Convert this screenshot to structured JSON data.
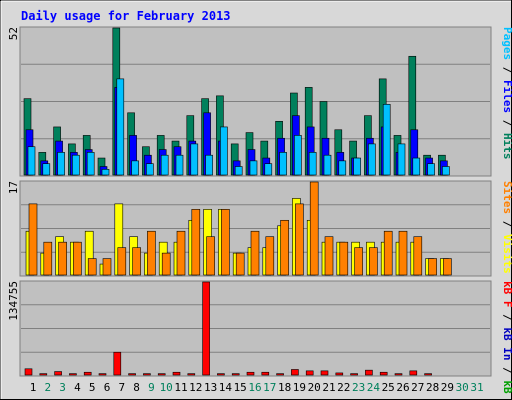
{
  "title": "Daily usage for February 2013",
  "colors": {
    "hits": "#00805c",
    "files": "#0000ff",
    "pages": "#00c0ff",
    "visits": "#ffff00",
    "sites": "#ff8000",
    "kbin": "#0000c0",
    "kbout": "#00a000",
    "kbf": "#ff0000",
    "title": "#0000ff",
    "plot_bg": "#c0c0c0",
    "frame_bg": "#d8d8d8"
  },
  "right_labels": {
    "top": [
      {
        "text": "Pages",
        "color": "#00c0ff"
      },
      {
        "text": " / ",
        "color": "#000000"
      },
      {
        "text": "Files",
        "color": "#0000ff"
      },
      {
        "text": " / ",
        "color": "#000000"
      },
      {
        "text": "Hits",
        "color": "#00805c"
      }
    ],
    "middle": [
      {
        "text": "Sites",
        "color": "#ff8000"
      },
      {
        "text": " / ",
        "color": "#000000"
      },
      {
        "text": "Visits",
        "color": "#ffff00"
      }
    ],
    "bottom": [
      {
        "text": "kB F",
        "color": "#ff0000"
      },
      {
        "text": " / ",
        "color": "#000000"
      },
      {
        "text": "kB In",
        "color": "#0000c0"
      },
      {
        "text": " / ",
        "color": "#000000"
      },
      {
        "text": "kB Out",
        "color": "#00a000"
      }
    ]
  },
  "chart_data": [
    {
      "type": "bar",
      "panel": "hits-files-pages",
      "ymax_label": "52",
      "ylim": [
        0,
        52
      ],
      "categories": [
        "1",
        "2",
        "3",
        "4",
        "5",
        "6",
        "7",
        "8",
        "9",
        "10",
        "11",
        "12",
        "13",
        "14",
        "15",
        "16",
        "17",
        "18",
        "19",
        "20",
        "21",
        "22",
        "23",
        "24",
        "25",
        "26",
        "27",
        "28",
        "29",
        "30",
        "31"
      ],
      "series": [
        {
          "name": "Hits",
          "values": [
            27,
            8,
            17,
            11,
            14,
            6,
            52,
            22,
            10,
            14,
            12,
            21,
            27,
            28,
            11,
            15,
            12,
            19,
            29,
            31,
            26,
            16,
            12,
            21,
            34,
            14,
            42,
            7,
            7,
            0,
            0
          ]
        },
        {
          "name": "Files",
          "values": [
            16,
            5,
            12,
            8,
            9,
            3,
            31,
            14,
            7,
            9,
            10,
            12,
            22,
            12,
            5,
            9,
            6,
            13,
            21,
            17,
            13,
            8,
            6,
            13,
            17,
            8,
            16,
            6,
            5,
            0,
            0
          ]
        },
        {
          "name": "Pages",
          "values": [
            10,
            4,
            8,
            7,
            8,
            2,
            34,
            5,
            4,
            7,
            7,
            11,
            7,
            17,
            3,
            5,
            4,
            8,
            14,
            8,
            7,
            5,
            6,
            11,
            25,
            11,
            6,
            4,
            3,
            0,
            0
          ]
        }
      ]
    },
    {
      "type": "bar",
      "panel": "visits-sites",
      "ymax_label": "17",
      "ylim": [
        0,
        17
      ],
      "categories": [
        "1",
        "2",
        "3",
        "4",
        "5",
        "6",
        "7",
        "8",
        "9",
        "10",
        "11",
        "12",
        "13",
        "14",
        "15",
        "16",
        "17",
        "18",
        "19",
        "20",
        "21",
        "22",
        "23",
        "24",
        "25",
        "26",
        "27",
        "28",
        "29",
        "30",
        "31"
      ],
      "series": [
        {
          "name": "Visits",
          "values": [
            8,
            4,
            7,
            6,
            8,
            2,
            13,
            7,
            4,
            6,
            6,
            10,
            12,
            12,
            4,
            5,
            5,
            9,
            14,
            10,
            6,
            6,
            6,
            6,
            6,
            6,
            6,
            3,
            3,
            0,
            0
          ]
        },
        {
          "name": "Sites",
          "values": [
            13,
            6,
            6,
            6,
            3,
            3,
            5,
            5,
            8,
            4,
            8,
            12,
            7,
            12,
            4,
            8,
            7,
            10,
            13,
            17,
            7,
            6,
            5,
            5,
            8,
            8,
            7,
            3,
            3,
            0,
            0
          ]
        }
      ]
    },
    {
      "type": "bar",
      "panel": "kbytes",
      "ymax_label": "134755",
      "ylim": [
        0,
        134755
      ],
      "categories": [
        "1",
        "2",
        "3",
        "4",
        "5",
        "6",
        "7",
        "8",
        "9",
        "10",
        "11",
        "12",
        "13",
        "14",
        "15",
        "16",
        "17",
        "18",
        "19",
        "20",
        "21",
        "22",
        "23",
        "24",
        "25",
        "26",
        "27",
        "28",
        "29",
        "30",
        "31"
      ],
      "series": [
        {
          "name": "kB F",
          "values": [
            9000,
            2000,
            5000,
            2000,
            4000,
            2000,
            33000,
            2000,
            2000,
            2000,
            4000,
            2000,
            134755,
            2000,
            2000,
            4000,
            4000,
            2000,
            8000,
            6000,
            6000,
            3000,
            2000,
            7000,
            4000,
            2000,
            6000,
            2000,
            0,
            0,
            0
          ]
        },
        {
          "name": "kB In",
          "values": [
            0,
            0,
            0,
            0,
            0,
            0,
            0,
            0,
            0,
            0,
            0,
            0,
            0,
            0,
            0,
            0,
            0,
            0,
            0,
            0,
            0,
            0,
            0,
            0,
            0,
            0,
            0,
            0,
            0,
            0,
            0
          ]
        },
        {
          "name": "kB Out",
          "values": [
            0,
            0,
            0,
            0,
            0,
            0,
            0,
            0,
            0,
            0,
            0,
            0,
            0,
            0,
            0,
            0,
            0,
            0,
            0,
            0,
            0,
            0,
            0,
            0,
            0,
            0,
            0,
            0,
            0,
            0,
            0
          ]
        }
      ]
    }
  ],
  "x_labels": [
    {
      "text": "1",
      "weekend": false
    },
    {
      "text": "2",
      "weekend": true
    },
    {
      "text": "3",
      "weekend": true
    },
    {
      "text": "4",
      "weekend": false
    },
    {
      "text": "5",
      "weekend": false
    },
    {
      "text": "6",
      "weekend": false
    },
    {
      "text": "7",
      "weekend": false
    },
    {
      "text": "8",
      "weekend": false
    },
    {
      "text": "9",
      "weekend": true
    },
    {
      "text": "10",
      "weekend": true
    },
    {
      "text": "11",
      "weekend": false
    },
    {
      "text": "12",
      "weekend": false
    },
    {
      "text": "13",
      "weekend": false
    },
    {
      "text": "14",
      "weekend": false
    },
    {
      "text": "15",
      "weekend": false
    },
    {
      "text": "16",
      "weekend": true
    },
    {
      "text": "17",
      "weekend": true
    },
    {
      "text": "18",
      "weekend": false
    },
    {
      "text": "19",
      "weekend": false
    },
    {
      "text": "20",
      "weekend": false
    },
    {
      "text": "21",
      "weekend": false
    },
    {
      "text": "22",
      "weekend": false
    },
    {
      "text": "23",
      "weekend": true
    },
    {
      "text": "24",
      "weekend": true
    },
    {
      "text": "25",
      "weekend": false
    },
    {
      "text": "26",
      "weekend": false
    },
    {
      "text": "27",
      "weekend": false
    },
    {
      "text": "28",
      "weekend": false
    },
    {
      "text": "29",
      "weekend": false
    },
    {
      "text": "30",
      "weekend": true
    },
    {
      "text": "31",
      "weekend": true
    }
  ]
}
